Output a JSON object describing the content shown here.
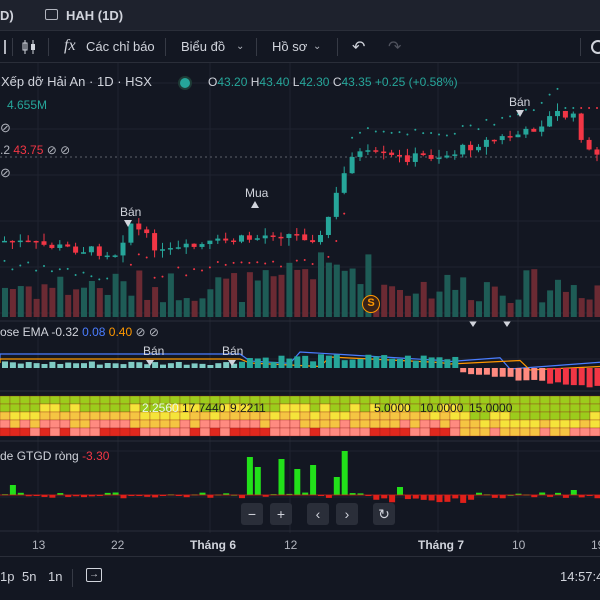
{
  "tabs": [
    {
      "label": "D)"
    },
    {
      "label": "HAH (1D)"
    }
  ],
  "toolbar": {
    "indicators_label": "Các chỉ báo",
    "chart_type_label": "Biểu đồ",
    "profile_label": "Hồ sơ"
  },
  "symbol": {
    "name": "Xếp dỡ Hải An · 1D · HSX",
    "o_label": "O",
    "o": "43.20",
    "h_label": "H",
    "h": "43.40",
    "l_label": "L",
    "l": "42.30",
    "c_label": "C",
    "c": "43.35",
    "change": "+0.25 (+0.58%)"
  },
  "volume_value": "4.655M",
  "indicator_row": {
    "partial": ".2",
    "value": "43.75"
  },
  "markers": [
    {
      "label": "Bán"
    },
    {
      "label": "Mua"
    },
    {
      "label": "Bán"
    }
  ],
  "macd_legend": {
    "name": "ose EMA",
    "v1": "-0.32",
    "v2": "0.08",
    "v3": "0.40"
  },
  "macd_markers": [
    {
      "label": "Bán"
    },
    {
      "label": "Bán"
    }
  ],
  "band_values": [
    "17.7440",
    "9.2211",
    "2.2560",
    "5.0000",
    "10.0000",
    "15.0000"
  ],
  "gtgd_legend": {
    "prefix": "de",
    "name": "GTGD ròng",
    "value": "-3.30"
  },
  "time_axis": [
    "13",
    "22",
    "Tháng 6",
    "12",
    "Tháng 7",
    "10",
    "19"
  ],
  "bottom_bar": {
    "intervals": [
      "1p",
      "5n",
      "1n"
    ],
    "clock": "14:57:4"
  },
  "colors": {
    "up": "#26a69a",
    "down": "#f23645",
    "background": "#131722"
  },
  "chart_data": [
    {
      "type": "candlestick",
      "symbol": "HAH",
      "interval": "1D",
      "last": {
        "open": 43.2,
        "high": 43.4,
        "low": 42.3,
        "close": 43.35
      }
    },
    {
      "type": "bar",
      "name": "GTGD ròng",
      "last_value": -3.3
    }
  ]
}
